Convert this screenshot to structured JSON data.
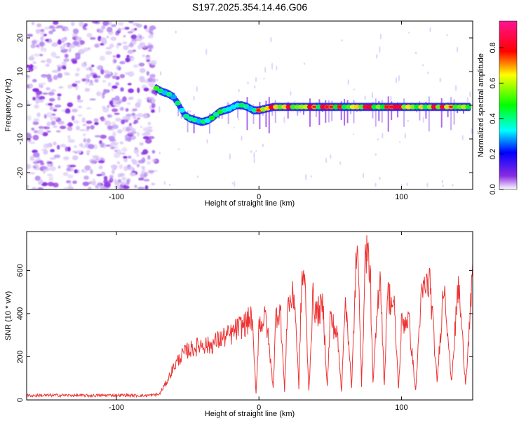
{
  "title": "S197.2025.354.14.46.G06",
  "colors": {
    "snr_line": "#ee3333",
    "axis": "#000000"
  },
  "chart_data": [
    {
      "type": "heatmap",
      "xlabel": "Height of straight line (km)",
      "ylabel": "Frequency (Hz)",
      "xlim": [
        -163,
        150
      ],
      "ylim": [
        -25,
        25
      ],
      "x_ticks": [
        -100,
        0,
        100
      ],
      "y_ticks": [
        20,
        10,
        0,
        -10,
        -20
      ],
      "colorbar": {
        "label": "Normalized spectral amplitude",
        "range": [
          0.0,
          0.95
        ],
        "ticks": [
          "0.0",
          "0.2",
          "0.4",
          "0.6",
          "0.8"
        ],
        "tick_values": [
          0.0,
          0.2,
          0.4,
          0.6,
          0.8
        ]
      },
      "noise_region_x": [
        -163,
        -72
      ],
      "ridge": {
        "x": [
          -72,
          -68,
          -64,
          -60,
          -56,
          -52,
          -48,
          -44,
          -40,
          -36,
          -32,
          -28,
          -24,
          -20,
          -16,
          -12,
          -8,
          -4,
          0,
          5,
          10,
          20,
          30,
          40,
          50,
          60,
          70,
          80,
          90,
          100,
          110,
          120,
          130,
          140,
          148
        ],
        "freq": [
          5,
          4,
          3.5,
          2.5,
          0,
          -3,
          -4,
          -4.5,
          -5,
          -4.5,
          -3.5,
          -2,
          -1.5,
          -1,
          0,
          0,
          -0.5,
          -1.5,
          -1.5,
          -1,
          -0.5,
          -0.5,
          -0.5,
          -0.5,
          -0.5,
          -0.5,
          -0.5,
          -0.5,
          -0.5,
          -0.5,
          -0.5,
          -0.5,
          -0.5,
          -0.5,
          -0.5
        ]
      }
    },
    {
      "type": "line",
      "xlabel": "Height of straight line (km)",
      "ylabel": "SNR (10 * v/v)",
      "xlim": [
        -163,
        150
      ],
      "ylim": [
        0,
        780
      ],
      "x_ticks": [
        -100,
        0,
        100
      ],
      "y_ticks": [
        0,
        200,
        400,
        600
      ],
      "series": [
        {
          "name": "SNR",
          "x": [
            -163,
            -140,
            -120,
            -100,
            -80,
            -70,
            -65,
            -60,
            -55,
            -50,
            -45,
            -40,
            -35,
            -30,
            -25,
            -20,
            -15,
            -10,
            -5,
            -2,
            0,
            5,
            10,
            12,
            15,
            18,
            20,
            25,
            28,
            30,
            32,
            35,
            38,
            40,
            45,
            48,
            50,
            55,
            58,
            60,
            62,
            65,
            68,
            70,
            72,
            75,
            78,
            80,
            85,
            88,
            90,
            95,
            98,
            100,
            105,
            110,
            113,
            115,
            120,
            125,
            130,
            135,
            140,
            145,
            150
          ],
          "values": [
            20,
            22,
            20,
            22,
            20,
            25,
            80,
            150,
            200,
            230,
            240,
            260,
            250,
            270,
            290,
            300,
            330,
            350,
            380,
            30,
            350,
            380,
            60,
            400,
            420,
            40,
            440,
            480,
            60,
            550,
            580,
            40,
            480,
            400,
            430,
            60,
            380,
            300,
            40,
            420,
            380,
            50,
            600,
            650,
            60,
            720,
            600,
            70,
            620,
            60,
            500,
            420,
            50,
            350,
            380,
            40,
            400,
            500,
            550,
            80,
            560,
            80,
            540,
            80,
            560
          ]
        }
      ]
    }
  ]
}
